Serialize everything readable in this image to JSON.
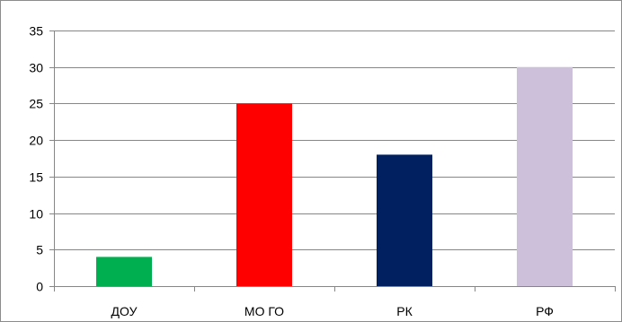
{
  "chart_data": {
    "type": "bar",
    "title": "",
    "xlabel": "",
    "ylabel": "",
    "categories": [
      "ДОУ",
      "МО ГО",
      "РК",
      "РФ"
    ],
    "values": [
      4,
      25,
      18,
      30
    ],
    "bar_colors": [
      "#00b050",
      "#ff0000",
      "#002060",
      "#ccc0da"
    ],
    "ylim": [
      0,
      35
    ],
    "yticks": [
      "0",
      "5",
      "10",
      "15",
      "20",
      "25",
      "30",
      "35"
    ],
    "grid": true,
    "legend": "none"
  }
}
